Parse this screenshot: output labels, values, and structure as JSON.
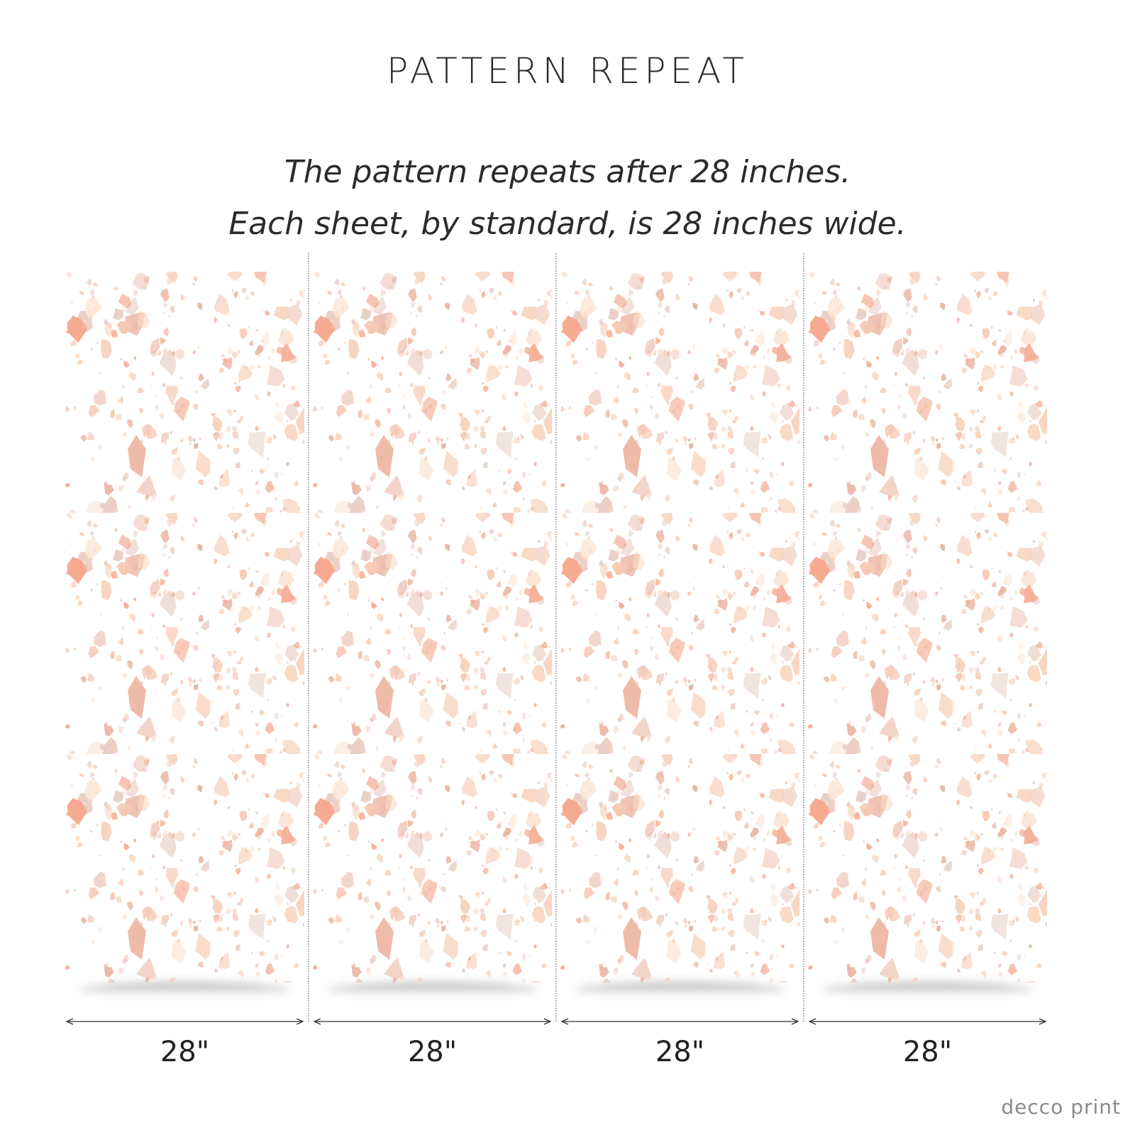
{
  "title": "PATTERN REPEAT",
  "description": [
    "The pattern repeats after 28 inches.",
    "Each sheet, by standard, is 28 inches wide."
  ],
  "sheets": [
    {
      "width_label": "28\""
    },
    {
      "width_label": "28\""
    },
    {
      "width_label": "28\""
    },
    {
      "width_label": "28\""
    }
  ],
  "brand": "decco print"
}
